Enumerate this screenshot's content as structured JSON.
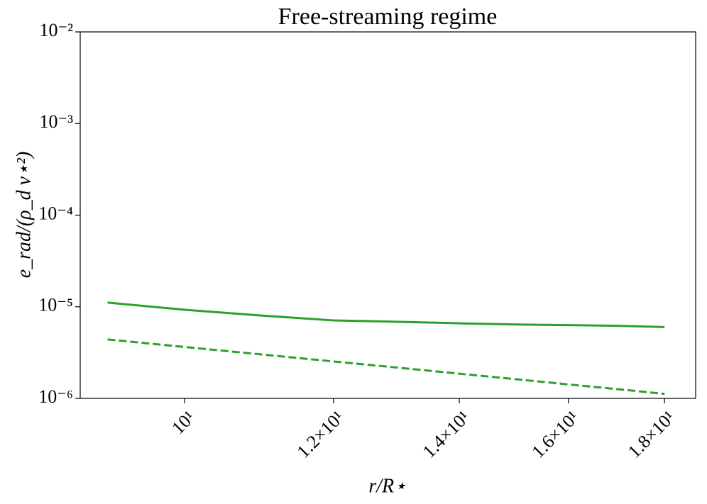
{
  "chart_data": {
    "type": "line",
    "title": "Free-streaming regime",
    "xlabel": "r/R⋆",
    "ylabel": "e_rad/(ρ_d v⋆²)",
    "xscale": "log",
    "yscale": "log",
    "xlim": [
      8.8,
      18.7
    ],
    "ylim": [
      1e-06,
      0.01
    ],
    "xticks": [
      {
        "value": 10,
        "label": "10¹"
      },
      {
        "value": 12,
        "label": "1.2×10¹"
      },
      {
        "value": 14,
        "label": "1.4×10¹"
      },
      {
        "value": 16,
        "label": "1.6×10¹"
      },
      {
        "value": 18,
        "label": "1.8×10¹"
      }
    ],
    "yticks": [
      {
        "value": 1e-06,
        "label": "10⁻⁶"
      },
      {
        "value": 1e-05,
        "label": "10⁻⁵"
      },
      {
        "value": 0.0001,
        "label": "10⁻⁴"
      },
      {
        "value": 0.001,
        "label": "10⁻³"
      },
      {
        "value": 0.01,
        "label": "10⁻²"
      }
    ],
    "x": [
      9.1,
      10,
      11,
      12,
      13,
      14,
      15,
      16,
      17,
      18
    ],
    "series": [
      {
        "color": "#2ca02c",
        "linestyle": "solid",
        "values": [
          1.11e-05,
          9.27e-06,
          8e-06,
          7.1e-06,
          6.85e-06,
          6.6e-06,
          6.4e-06,
          6.3e-06,
          6.2e-06,
          6e-06
        ]
      },
      {
        "color": "#2ca02c",
        "linestyle": "dashed",
        "values": [
          4.4e-06,
          3.64e-06,
          3.01e-06,
          2.53e-06,
          2.16e-06,
          1.86e-06,
          1.62e-06,
          1.42e-06,
          1.26e-06,
          1.12e-06
        ]
      }
    ]
  }
}
